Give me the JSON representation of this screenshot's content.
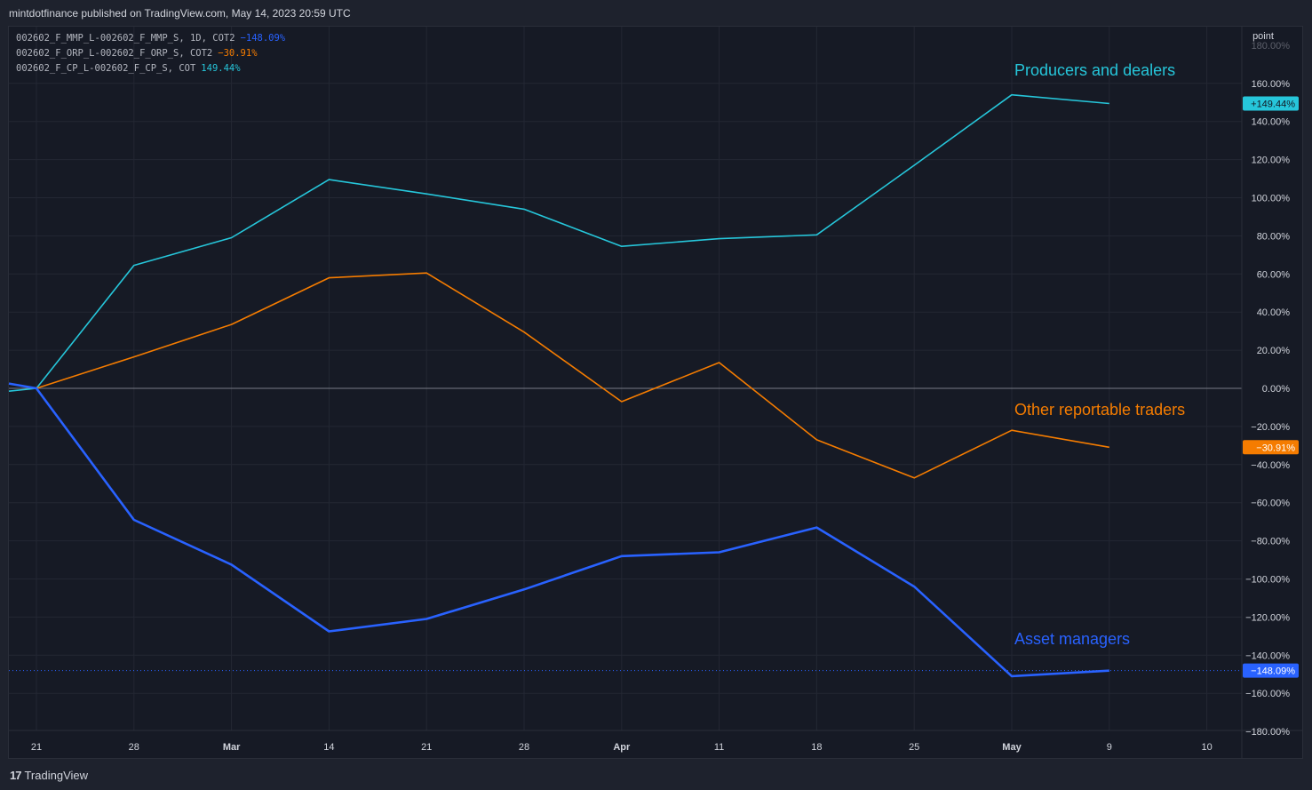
{
  "header": {
    "published": "mintdotfinance published on TradingView.com, May 14, 2023 20:59 UTC"
  },
  "footer": {
    "logo_glyph": "17",
    "brand": "TradingView"
  },
  "legend": [
    {
      "label": "002602_F_MMP_L-002602_F_MMP_S, 1D, COT2",
      "value": "−148.09%",
      "color": "#2962ff"
    },
    {
      "label": "002602_F_ORP_L-002602_F_ORP_S, COT2",
      "value": "−30.91%",
      "color": "#f57c00"
    },
    {
      "label": "002602_F_CP_L-002602_F_CP_S, COT",
      "value": "149.44%",
      "color": "#26c6da"
    }
  ],
  "chart_data": {
    "type": "line",
    "axis_unit_label": "point",
    "x_ticks": [
      "21",
      "28",
      "Mar",
      "14",
      "21",
      "28",
      "Apr",
      "11",
      "18",
      "25",
      "May",
      "9",
      "10"
    ],
    "x_tick_bold": [
      false,
      false,
      true,
      false,
      false,
      false,
      true,
      false,
      false,
      false,
      true,
      false,
      false
    ],
    "y_ticks": [
      160,
      140,
      120,
      100,
      80,
      60,
      40,
      20,
      0,
      -20,
      -40,
      -60,
      -80,
      -100,
      -120,
      -140,
      -160,
      -180
    ],
    "y_tick_labels": [
      "160.00%",
      "140.00%",
      "120.00%",
      "100.00%",
      "80.00%",
      "60.00%",
      "40.00%",
      "20.00%",
      "0.00%",
      "−20.00%",
      "−40.00%",
      "−60.00%",
      "−80.00%",
      "−100.00%",
      "−120.00%",
      "−140.00%",
      "−160.00%",
      "−180.00%"
    ],
    "y_partial_top_label": "180.00%",
    "ylim": [
      -180,
      180
    ],
    "series": [
      {
        "name": "Producers and dealers",
        "color": "#26c6da",
        "x": [
          "Feb 14",
          "Feb 21",
          "Feb 28",
          "Mar 7",
          "Mar 14",
          "Mar 21",
          "Mar 28",
          "Apr 4",
          "Apr 11",
          "Apr 18",
          "Apr 25",
          "May 2",
          "May 9"
        ],
        "y": [
          -1.5,
          0,
          64.5,
          79,
          109.5,
          102,
          94,
          74.5,
          78.5,
          80.5,
          117,
          154,
          149.44
        ],
        "end_label": "+149.44%"
      },
      {
        "name": "Other reportable traders",
        "color": "#f57c00",
        "x": [
          "Feb 21",
          "Feb 28",
          "Mar 7",
          "Mar 14",
          "Mar 21",
          "Mar 28",
          "Apr 4",
          "Apr 11",
          "Apr 18",
          "Apr 25",
          "May 2",
          "May 9"
        ],
        "y": [
          0,
          16.5,
          33.5,
          58,
          60.5,
          29.5,
          -7,
          13.5,
          -27,
          -47,
          -22,
          -30.91
        ],
        "end_label": "−30.91%"
      },
      {
        "name": "Asset managers",
        "color": "#2962ff",
        "x": [
          "Feb 14",
          "Feb 21",
          "Feb 28",
          "Mar 7",
          "Mar 14",
          "Mar 21",
          "Mar 28",
          "Apr 4",
          "Apr 11",
          "Apr 18",
          "Apr 25",
          "May 2",
          "May 9"
        ],
        "y": [
          2.5,
          0,
          -69,
          -92.5,
          -127.5,
          -121,
          -105.5,
          -88,
          -86,
          -73,
          -104,
          -151,
          -148.09
        ],
        "end_label": "−148.09%"
      }
    ]
  }
}
